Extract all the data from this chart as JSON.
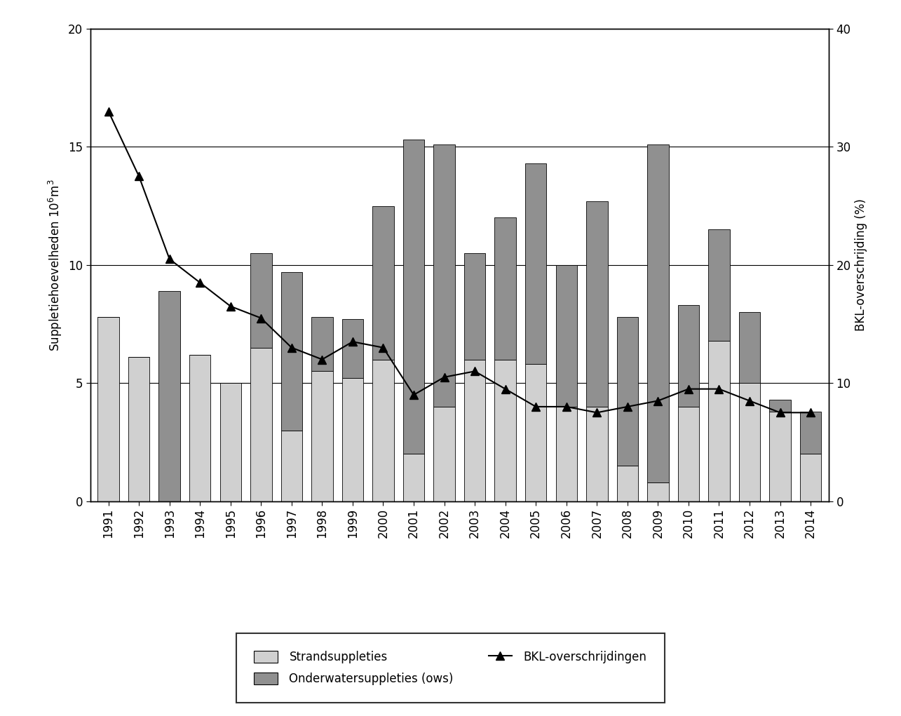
{
  "years": [
    1991,
    1992,
    1993,
    1994,
    1995,
    1996,
    1997,
    1998,
    1999,
    2000,
    2001,
    2002,
    2003,
    2004,
    2005,
    2006,
    2007,
    2008,
    2009,
    2010,
    2011,
    2012,
    2013,
    2014
  ],
  "strand": [
    7.8,
    6.1,
    0.0,
    6.2,
    5.0,
    6.5,
    3.0,
    5.5,
    5.2,
    6.0,
    2.0,
    4.0,
    6.0,
    6.0,
    5.8,
    4.0,
    4.0,
    1.5,
    0.8,
    4.0,
    6.8,
    5.0,
    3.8,
    2.0
  ],
  "onderwater": [
    0.0,
    0.0,
    8.9,
    0.0,
    0.0,
    4.0,
    6.7,
    2.3,
    2.5,
    6.5,
    13.3,
    11.1,
    4.5,
    6.0,
    8.5,
    6.0,
    8.7,
    6.3,
    14.3,
    4.3,
    4.7,
    3.0,
    0.5,
    1.8
  ],
  "bkl": [
    33.0,
    27.5,
    20.5,
    18.5,
    16.5,
    15.5,
    13.0,
    12.0,
    13.5,
    13.0,
    9.0,
    10.5,
    11.0,
    9.5,
    8.0,
    8.0,
    7.5,
    8.0,
    8.5,
    9.5,
    9.5,
    8.5,
    7.5,
    7.5
  ],
  "left_ylim": [
    0,
    20
  ],
  "right_ylim": [
    0,
    40
  ],
  "left_yticks": [
    0,
    5,
    10,
    15,
    20
  ],
  "right_yticks": [
    0,
    10,
    20,
    30,
    40
  ],
  "ylabel_left": "Suppletiehoevelheden 10^6 m^3",
  "ylabel_right": "BKL-overschrijding (%)",
  "color_strand": "#d0d0d0",
  "color_onderwater": "#909090",
  "color_bkl_line": "#000000",
  "legend_strand": "Strandsuppleties",
  "legend_onderwater": "Onderwatersuppleties (ows)",
  "legend_bkl": "BKL-overschrijdingen",
  "background_color": "#ffffff"
}
